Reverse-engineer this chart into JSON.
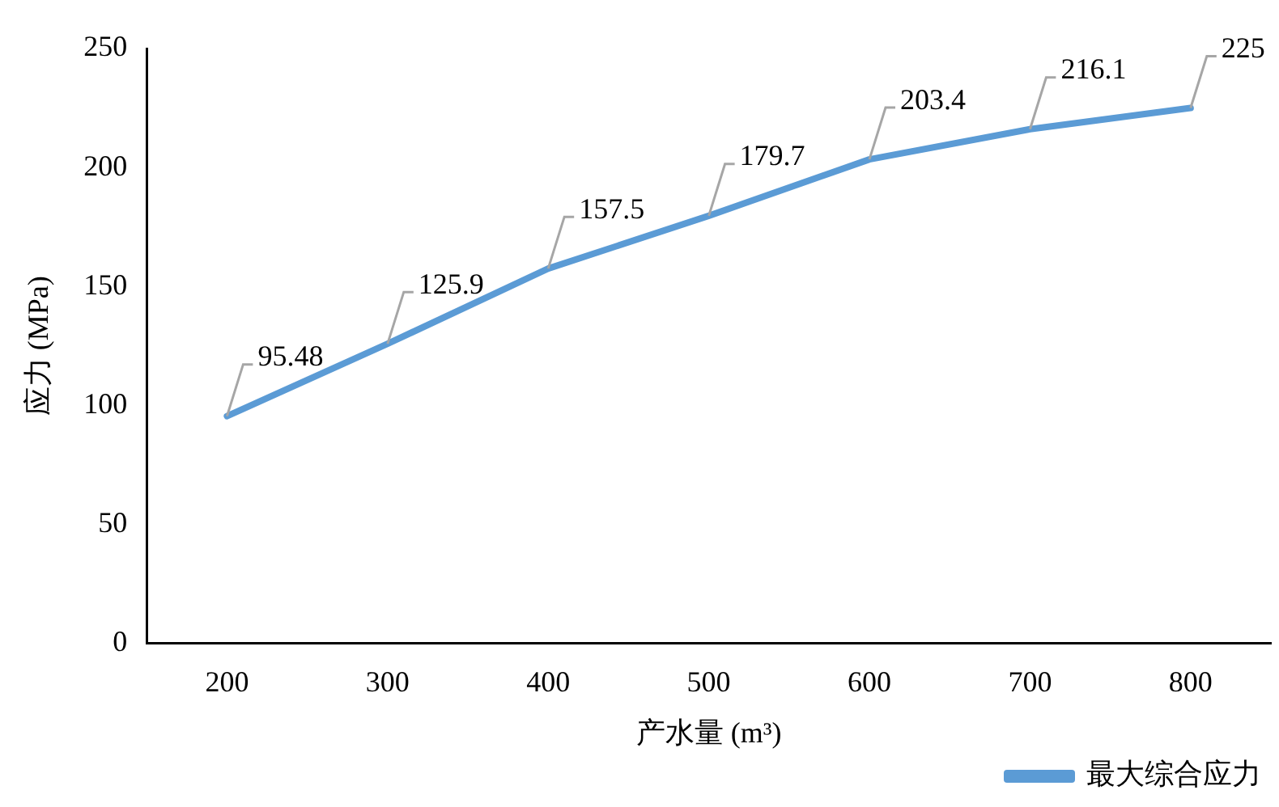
{
  "chart_data": {
    "type": "line",
    "xlabel": "产水量 (m³)",
    "ylabel": "应力 (MPa)",
    "categories": [
      "200",
      "300",
      "400",
      "500",
      "600",
      "700",
      "800"
    ],
    "series": [
      {
        "name": "最大综合应力",
        "color": "#5b9bd5",
        "values": [
          95.48,
          125.9,
          157.5,
          179.7,
          203.4,
          216.1,
          225
        ]
      }
    ],
    "ylim": [
      0,
      250
    ],
    "yticks": [
      0,
      50,
      100,
      150,
      200,
      250
    ],
    "grid": false,
    "legend": "bottom right",
    "marker": "none",
    "line_style": "solid",
    "data_labels": true
  }
}
